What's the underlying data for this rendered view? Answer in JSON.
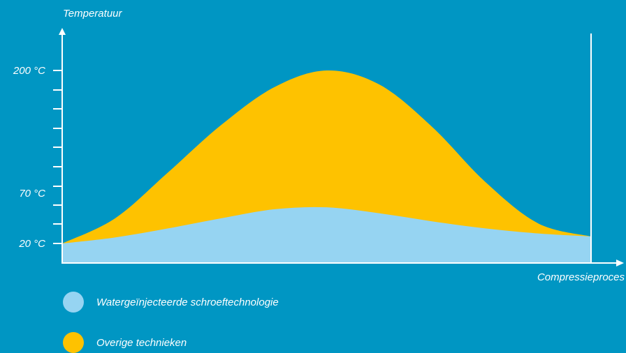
{
  "chart_data": {
    "type": "area",
    "xlabel": "Compressieproces",
    "ylabel": "Temperatuur",
    "x": [
      0,
      0.1,
      0.2,
      0.3,
      0.4,
      0.5,
      0.6,
      0.7,
      0.8,
      0.9,
      1.0
    ],
    "y_ticks": [
      {
        "value": 20,
        "label": "20 °C"
      },
      {
        "value": 70,
        "label": "70 °C"
      },
      {
        "value": 200,
        "label": "200 °C"
      }
    ],
    "series": [
      {
        "name": "Overige technieken",
        "color": "#fec200",
        "values": [
          20,
          45,
          92,
          142,
          182,
          200,
          185,
          140,
          82,
          40,
          27
        ]
      },
      {
        "name": "Watergeïnjecteerde schroeftechnologie",
        "color": "#96d4f2",
        "values": [
          20,
          26,
          35,
          45,
          54,
          56,
          50,
          42,
          35,
          30,
          27
        ]
      }
    ]
  }
}
